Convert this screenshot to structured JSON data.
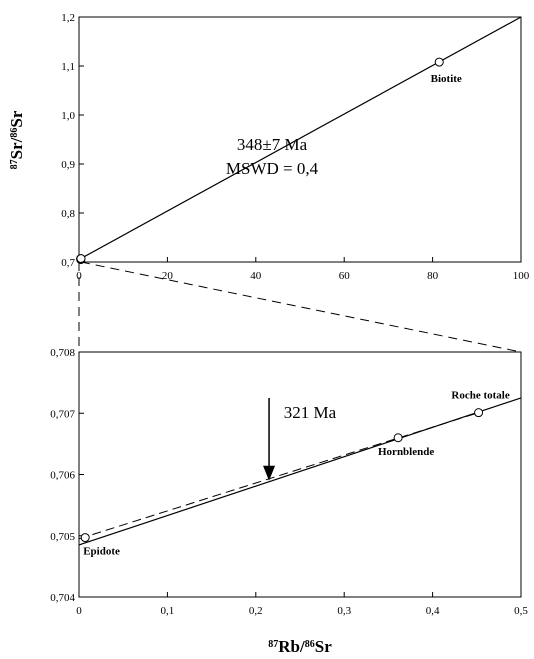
{
  "chart_data": [
    {
      "type": "scatter",
      "panel": "upper",
      "xlim": [
        0,
        100
      ],
      "ylim": [
        0.7,
        1.2
      ],
      "x_ticks": [
        0,
        20,
        40,
        60,
        80,
        100
      ],
      "x_tick_labels": [
        "0",
        "20",
        "40",
        "60",
        "80",
        "100"
      ],
      "y_ticks": [
        0.7,
        0.8,
        0.9,
        1.0,
        1.1,
        1.2
      ],
      "y_tick_labels": [
        "0,7",
        "0,8",
        "0,9",
        "1,0",
        "1,1",
        "1,2"
      ],
      "ylabel_base": "Sr/",
      "ylabel_sup1": "87",
      "ylabel_sup2": "86",
      "ylabel_tail": "Sr",
      "grid": false,
      "series": [
        {
          "points": [
            {
              "x": 0.4,
              "y": 0.7049
            },
            {
              "x": 0.36,
              "y": 0.7066
            },
            {
              "x": 0.45,
              "y": 0.707
            },
            {
              "x": 81.5,
              "y": 1.108
            }
          ],
          "labels": [
            {
              "text": "Biotite",
              "x": 81.5,
              "y": 1.108
            }
          ]
        }
      ],
      "isochron": {
        "x0": 0,
        "y0": 0.705,
        "x1": 100,
        "y1": 1.2
      },
      "annotations": [
        "348±7 Ma",
        "MSWD = 0,4"
      ]
    },
    {
      "type": "scatter",
      "panel": "lower",
      "xlim": [
        0,
        0.5
      ],
      "ylim": [
        0.704,
        0.708
      ],
      "x_ticks": [
        0,
        0.1,
        0.2,
        0.3,
        0.4,
        0.5
      ],
      "x_tick_labels": [
        "0",
        "0,1",
        "0,2",
        "0,3",
        "0,4",
        "0,5"
      ],
      "y_ticks": [
        0.704,
        0.705,
        0.706,
        0.707,
        0.708
      ],
      "y_tick_labels": [
        "0,704",
        "0,705",
        "0,706",
        "0,707",
        "0,708"
      ],
      "xlabel_sup1": "87",
      "xlabel_mid": "Rb/",
      "xlabel_sup2": "86",
      "xlabel_tail": "Sr",
      "grid": false,
      "series": [
        {
          "points": [
            {
              "x": 0.007,
              "y": 0.70497,
              "label": "Epidote"
            },
            {
              "x": 0.361,
              "y": 0.7066,
              "label": "Hornblende"
            },
            {
              "x": 0.452,
              "y": 0.70701,
              "label": "Roche totale"
            }
          ]
        }
      ],
      "isochron_348": {
        "x0": 0,
        "y0": 0.70485,
        "x1": 0.5,
        "y1": 0.70725
      },
      "isochron_321": {
        "x0": 0,
        "y0": 0.70495,
        "x1": 0.452,
        "y1": 0.70701
      },
      "annotation": "321 Ma",
      "arrow_at_x": 0.215
    }
  ]
}
